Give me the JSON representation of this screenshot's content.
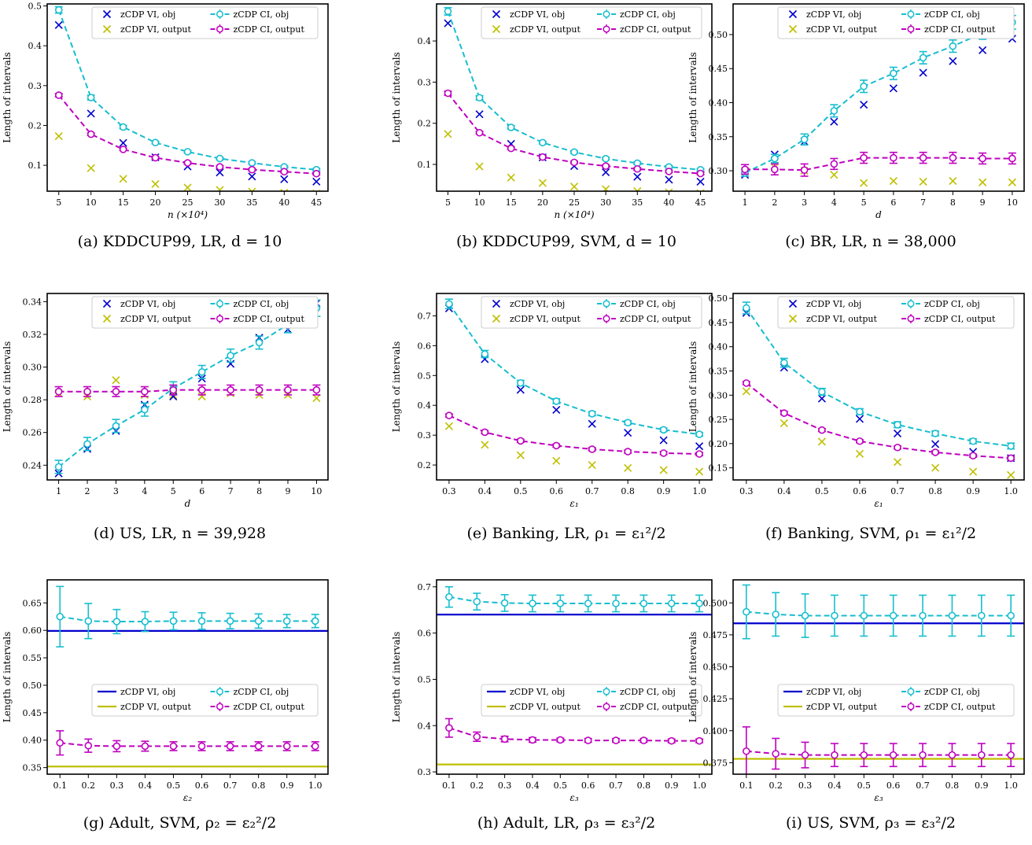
{
  "colors": {
    "vi_obj": "#0000cc",
    "vi_output": "#bfbf00",
    "ci_obj": "#17becf",
    "ci_output": "#bf00bf"
  },
  "legend_labels": {
    "vi_obj": "zCDP VI, obj",
    "vi_output": "zCDP VI, output",
    "ci_obj": "zCDP CI, obj",
    "ci_output": "zCDP CI, output"
  },
  "chart_data": [
    {
      "id": "a",
      "type": "line",
      "caption": "(a) KDDCUP99, LR, d = 10",
      "xlabel": "n (×10⁴)",
      "ylabel": "Length of intervals",
      "x": [
        5,
        10,
        15,
        20,
        25,
        30,
        35,
        40,
        45
      ],
      "xticks": [
        "5",
        "10",
        "15",
        "20",
        "25",
        "30",
        "35",
        "40",
        "45"
      ],
      "yticks": [
        "0.1",
        "0.2",
        "0.3",
        "0.4",
        "0.5"
      ],
      "xlim": [
        3.2,
        46.8
      ],
      "ylim": [
        0.035,
        0.505
      ],
      "vi_style": "markers",
      "legend_position": "top",
      "series": {
        "vi_obj": [
          0.452,
          0.23,
          0.156,
          0.12,
          0.097,
          0.082,
          0.072,
          0.065,
          0.059
        ],
        "vi_output": [
          0.173,
          0.093,
          0.066,
          0.053,
          0.044,
          0.038,
          0.034,
          0.031,
          0.029
        ],
        "ci_obj": [
          0.49,
          0.27,
          0.196,
          0.157,
          0.134,
          0.117,
          0.106,
          0.096,
          0.089
        ],
        "ci_obj_err": [
          0.008,
          0.006,
          0.004,
          0.003,
          0.003,
          0.003,
          0.003,
          0.003,
          0.003
        ],
        "ci_output": [
          0.276,
          0.178,
          0.14,
          0.119,
          0.106,
          0.096,
          0.089,
          0.084,
          0.079
        ],
        "ci_output_err": [
          0.004,
          0.003,
          0.003,
          0.003,
          0.003,
          0.003,
          0.003,
          0.003,
          0.003
        ]
      }
    },
    {
      "id": "b",
      "type": "line",
      "caption": "(b) KDDCUP99, SVM, d = 10",
      "xlabel": "n (×10⁴)",
      "ylabel": "Length of intervals",
      "x": [
        5,
        10,
        15,
        20,
        25,
        30,
        35,
        40,
        45
      ],
      "xticks": [
        "5",
        "10",
        "15",
        "20",
        "25",
        "30",
        "35",
        "40",
        "45"
      ],
      "yticks": [
        "0.1",
        "0.2",
        "0.3",
        "0.4"
      ],
      "xlim": [
        3.2,
        46.8
      ],
      "ylim": [
        0.035,
        0.49
      ],
      "vi_style": "markers",
      "legend_position": "top",
      "series": {
        "vi_obj": [
          0.443,
          0.222,
          0.15,
          0.117,
          0.096,
          0.081,
          0.07,
          0.063,
          0.058
        ],
        "vi_output": [
          0.174,
          0.095,
          0.068,
          0.055,
          0.046,
          0.04,
          0.035,
          0.032,
          0.03
        ],
        "ci_obj": [
          0.472,
          0.262,
          0.19,
          0.153,
          0.13,
          0.114,
          0.103,
          0.094,
          0.087
        ],
        "ci_obj_err": [
          0.009,
          0.005,
          0.004,
          0.003,
          0.003,
          0.003,
          0.003,
          0.003,
          0.003
        ],
        "ci_output": [
          0.273,
          0.177,
          0.139,
          0.118,
          0.105,
          0.096,
          0.089,
          0.083,
          0.078
        ],
        "ci_output_err": [
          0.005,
          0.003,
          0.003,
          0.003,
          0.003,
          0.003,
          0.003,
          0.003,
          0.003
        ]
      }
    },
    {
      "id": "c",
      "type": "line",
      "caption": "(c) BR, LR, n = 38,000",
      "xlabel": "d",
      "ylabel": "Length of intervals",
      "x": [
        1,
        2,
        3,
        4,
        5,
        6,
        7,
        8,
        9,
        10
      ],
      "xticks": [
        "1",
        "2",
        "3",
        "4",
        "5",
        "6",
        "7",
        "8",
        "9",
        "10"
      ],
      "yticks": [
        "0.30",
        "0.35",
        "0.40",
        "0.45",
        "0.50"
      ],
      "xlim": [
        0.6,
        10.4
      ],
      "ylim": [
        0.27,
        0.545
      ],
      "vi_style": "markers",
      "legend_position": "top",
      "series": {
        "vi_obj": [
          0.294,
          0.324,
          0.343,
          0.372,
          0.397,
          0.421,
          0.444,
          0.461,
          0.477,
          0.494
        ],
        "vi_output": [
          0.3,
          0.305,
          0.3,
          0.294,
          0.282,
          0.285,
          0.284,
          0.285,
          0.283,
          0.283
        ],
        "ci_obj": [
          0.297,
          0.318,
          0.346,
          0.388,
          0.424,
          0.443,
          0.466,
          0.483,
          0.502,
          0.518
        ],
        "ci_obj_err": [
          0.005,
          0.006,
          0.008,
          0.009,
          0.009,
          0.009,
          0.009,
          0.009,
          0.009,
          0.01
        ],
        "ci_output": [
          0.302,
          0.302,
          0.301,
          0.31,
          0.319,
          0.319,
          0.319,
          0.319,
          0.318,
          0.318
        ],
        "ci_output_err": [
          0.007,
          0.008,
          0.009,
          0.008,
          0.008,
          0.008,
          0.008,
          0.008,
          0.008,
          0.008
        ]
      }
    },
    {
      "id": "d",
      "type": "line",
      "caption": "(d) US, LR, n = 39,928",
      "xlabel": "d",
      "ylabel": "Length of intervals",
      "x": [
        1,
        2,
        3,
        4,
        5,
        6,
        7,
        8,
        9,
        10
      ],
      "xticks": [
        "1",
        "2",
        "3",
        "4",
        "5",
        "6",
        "7",
        "8",
        "9",
        "10"
      ],
      "yticks": [
        "0.24",
        "0.26",
        "0.28",
        "0.30",
        "0.32",
        "0.34"
      ],
      "xlim": [
        0.6,
        10.4
      ],
      "ylim": [
        0.231,
        0.345
      ],
      "vi_style": "markers",
      "legend_position": "top",
      "series": {
        "vi_obj": [
          0.235,
          0.25,
          0.261,
          0.277,
          0.282,
          0.293,
          0.302,
          0.318,
          0.323,
          0.339
        ],
        "vi_output": [
          0.284,
          0.282,
          0.292,
          0.283,
          0.283,
          0.282,
          0.284,
          0.283,
          0.283,
          0.281
        ],
        "ci_obj": [
          0.239,
          0.253,
          0.264,
          0.274,
          0.287,
          0.297,
          0.307,
          0.315,
          0.326,
          0.336
        ],
        "ci_obj_err": [
          0.004,
          0.004,
          0.004,
          0.004,
          0.004,
          0.004,
          0.004,
          0.004,
          0.005,
          0.005
        ],
        "ci_output": [
          0.285,
          0.285,
          0.285,
          0.285,
          0.286,
          0.286,
          0.286,
          0.286,
          0.286,
          0.286
        ],
        "ci_output_err": [
          0.003,
          0.003,
          0.003,
          0.003,
          0.003,
          0.003,
          0.003,
          0.003,
          0.003,
          0.003
        ]
      }
    },
    {
      "id": "e",
      "type": "line",
      "caption": "(e) Banking, LR, ρ₁ = ε₁²/2",
      "xlabel": "ε₁",
      "ylabel": "Length of intervals",
      "x": [
        0.3,
        0.4,
        0.5,
        0.6,
        0.7,
        0.8,
        0.9,
        1.0
      ],
      "xticks": [
        "0.3",
        "0.4",
        "0.5",
        "0.6",
        "0.7",
        "0.8",
        "0.9",
        "1.0"
      ],
      "yticks": [
        "0.2",
        "0.3",
        "0.4",
        "0.5",
        "0.6",
        "0.7"
      ],
      "xlim": [
        0.265,
        1.035
      ],
      "ylim": [
        0.15,
        0.775
      ],
      "vi_style": "markers",
      "legend_position": "top",
      "series": {
        "vi_obj": [
          0.725,
          0.555,
          0.452,
          0.385,
          0.338,
          0.308,
          0.283,
          0.263
        ],
        "vi_output": [
          0.33,
          0.268,
          0.233,
          0.214,
          0.2,
          0.19,
          0.183,
          0.178
        ],
        "ci_obj": [
          0.74,
          0.572,
          0.475,
          0.414,
          0.372,
          0.342,
          0.318,
          0.303
        ],
        "ci_obj_err": [
          0.016,
          0.012,
          0.009,
          0.008,
          0.007,
          0.006,
          0.006,
          0.006
        ],
        "ci_output": [
          0.366,
          0.31,
          0.281,
          0.265,
          0.253,
          0.245,
          0.24,
          0.237
        ],
        "ci_output_err": [
          0.005,
          0.005,
          0.005,
          0.005,
          0.005,
          0.005,
          0.005,
          0.005
        ]
      }
    },
    {
      "id": "f",
      "type": "line",
      "caption": "(f) Banking, SVM, ρ₁ = ε₁²/2",
      "xlabel": "ε₁",
      "ylabel": "Length of intervals",
      "x": [
        0.3,
        0.4,
        0.5,
        0.6,
        0.7,
        0.8,
        0.9,
        1.0
      ],
      "xticks": [
        "0.3",
        "0.4",
        "0.5",
        "0.6",
        "0.7",
        "0.8",
        "0.9",
        "1.0"
      ],
      "yticks": [
        "0.15",
        "0.20",
        "0.25",
        "0.30",
        "0.35",
        "0.40",
        "0.45",
        "0.50"
      ],
      "xlim": [
        0.265,
        1.035
      ],
      "ylim": [
        0.125,
        0.51
      ],
      "vi_style": "markers",
      "legend_position": "top",
      "series": {
        "vi_obj": [
          0.47,
          0.357,
          0.293,
          0.251,
          0.221,
          0.199,
          0.183,
          0.17
        ],
        "vi_output": [
          0.308,
          0.242,
          0.204,
          0.179,
          0.162,
          0.15,
          0.142,
          0.135
        ],
        "ci_obj": [
          0.48,
          0.367,
          0.307,
          0.266,
          0.239,
          0.221,
          0.205,
          0.195
        ],
        "ci_obj_err": [
          0.012,
          0.009,
          0.007,
          0.006,
          0.006,
          0.005,
          0.005,
          0.006
        ],
        "ci_output": [
          0.325,
          0.263,
          0.228,
          0.205,
          0.192,
          0.182,
          0.175,
          0.17
        ],
        "ci_output_err": [
          0.003,
          0.003,
          0.003,
          0.003,
          0.003,
          0.003,
          0.003,
          0.003
        ]
      }
    },
    {
      "id": "g",
      "type": "line",
      "caption": "(g) Adult, SVM, ρ₂ = ε₂²/2",
      "xlabel": "ε₂",
      "ylabel": "Length of intervals",
      "x": [
        0.1,
        0.2,
        0.3,
        0.4,
        0.5,
        0.6,
        0.7,
        0.8,
        0.9,
        1.0
      ],
      "xticks": [
        "0.1",
        "0.2",
        "0.3",
        "0.4",
        "0.5",
        "0.6",
        "0.7",
        "0.8",
        "0.9",
        "1.0"
      ],
      "yticks": [
        "0.35",
        "0.40",
        "0.45",
        "0.50",
        "0.55",
        "0.60",
        "0.65"
      ],
      "xlim": [
        0.055,
        1.045
      ],
      "ylim": [
        0.338,
        0.692
      ],
      "vi_style": "lines",
      "legend_position": "center-right",
      "series": {
        "vi_obj": [
          0.599
        ],
        "vi_output": [
          0.352
        ],
        "ci_obj": [
          0.625,
          0.617,
          0.616,
          0.616,
          0.617,
          0.617,
          0.617,
          0.617,
          0.617,
          0.617
        ],
        "ci_obj_err": [
          0.055,
          0.032,
          0.022,
          0.018,
          0.016,
          0.015,
          0.014,
          0.013,
          0.012,
          0.012
        ],
        "ci_output": [
          0.395,
          0.39,
          0.389,
          0.389,
          0.389,
          0.389,
          0.389,
          0.389,
          0.389,
          0.389
        ],
        "ci_output_err": [
          0.022,
          0.012,
          0.01,
          0.009,
          0.008,
          0.008,
          0.008,
          0.008,
          0.008,
          0.008
        ]
      }
    },
    {
      "id": "h",
      "type": "line",
      "caption": "(h) Adult, LR, ρ₃ = ε₃²/2",
      "xlabel": "ε₃",
      "ylabel": "Length of intervals",
      "x": [
        0.1,
        0.2,
        0.3,
        0.4,
        0.5,
        0.6,
        0.7,
        0.8,
        0.9,
        1.0
      ],
      "xticks": [
        "0.1",
        "0.2",
        "0.3",
        "0.4",
        "0.5",
        "0.6",
        "0.7",
        "0.8",
        "0.9",
        "1.0"
      ],
      "yticks": [
        "0.3",
        "0.4",
        "0.5",
        "0.6",
        "0.7"
      ],
      "xlim": [
        0.055,
        1.045
      ],
      "ylim": [
        0.295,
        0.715
      ],
      "vi_style": "lines",
      "legend_position": "center-right",
      "series": {
        "vi_obj": [
          0.64
        ],
        "vi_output": [
          0.316
        ],
        "ci_obj": [
          0.678,
          0.668,
          0.665,
          0.664,
          0.664,
          0.664,
          0.664,
          0.664,
          0.664,
          0.664
        ],
        "ci_obj_err": [
          0.022,
          0.018,
          0.018,
          0.018,
          0.018,
          0.018,
          0.018,
          0.018,
          0.018,
          0.018
        ],
        "ci_output": [
          0.395,
          0.376,
          0.371,
          0.369,
          0.369,
          0.368,
          0.368,
          0.368,
          0.367,
          0.367
        ],
        "ci_output_err": [
          0.02,
          0.01,
          0.006,
          0.005,
          0.004,
          0.004,
          0.004,
          0.004,
          0.004,
          0.004
        ]
      }
    },
    {
      "id": "i",
      "type": "line",
      "caption": "(i) US, SVM, ρ₃ = ε₃²/2",
      "xlabel": "ε₃",
      "ylabel": "Length of intervals",
      "x": [
        0.1,
        0.2,
        0.3,
        0.4,
        0.5,
        0.6,
        0.7,
        0.8,
        0.9,
        1.0
      ],
      "xticks": [
        "0.1",
        "0.2",
        "0.3",
        "0.4",
        "0.5",
        "0.6",
        "0.7",
        "0.8",
        "0.9",
        "1.0"
      ],
      "yticks": [
        "0.375",
        "0.400",
        "0.425",
        "0.450",
        "0.475",
        "0.500"
      ],
      "xlim": [
        0.055,
        1.045
      ],
      "ylim": [
        0.366,
        0.518
      ],
      "vi_style": "lines",
      "legend_position": "center-right",
      "series": {
        "vi_obj": [
          0.484
        ],
        "vi_output": [
          0.378
        ],
        "ci_obj": [
          0.493,
          0.491,
          0.49,
          0.49,
          0.49,
          0.49,
          0.49,
          0.49,
          0.49,
          0.49
        ],
        "ci_obj_err": [
          0.021,
          0.017,
          0.017,
          0.016,
          0.016,
          0.016,
          0.016,
          0.016,
          0.016,
          0.016
        ],
        "ci_output": [
          0.384,
          0.382,
          0.381,
          0.381,
          0.381,
          0.381,
          0.381,
          0.381,
          0.381,
          0.381
        ],
        "ci_output_err": [
          0.019,
          0.012,
          0.01,
          0.009,
          0.009,
          0.009,
          0.009,
          0.009,
          0.009,
          0.009
        ]
      }
    }
  ]
}
